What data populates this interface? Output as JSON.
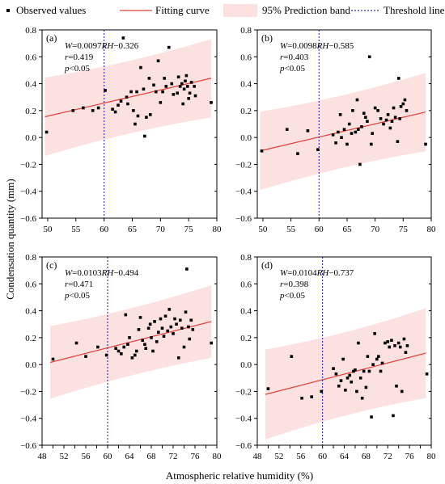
{
  "legend": {
    "observed": "Observed values",
    "fit": "Fitting curve",
    "band": "95% Prediction band",
    "threshold": "Threshold line"
  },
  "ylabel": "Condensation quantity (mm)",
  "xlabel": "Atmospheric relative humidity (%)",
  "colors": {
    "points": "#000000",
    "fit": "#e0403a",
    "band": "#fbe1e0",
    "threshold": "#2a2aa8"
  },
  "chart_data": [
    {
      "type": "scatter",
      "panel": "(a)",
      "annotation": {
        "eq_pre": "W",
        "eq_mid": "=0.0097",
        "eq_var": "RH",
        "eq_post": "−0.326",
        "r_var": "r",
        "r_val": "=0.419",
        "p_var": "p",
        "p_val": "<0.05"
      },
      "xlim": [
        49,
        80
      ],
      "ylim": [
        -0.6,
        0.8
      ],
      "xticks": [
        "50",
        "55",
        "60",
        "65",
        "70",
        "75",
        "80"
      ],
      "yticks": [
        "−0.6",
        "−0.4",
        "−0.2",
        "0.0",
        "0.2",
        "0.4",
        "0.6",
        "0.8"
      ],
      "threshold_x": 60,
      "fit": {
        "slope": 0.0097,
        "intercept": -0.326,
        "x_range": [
          49.5,
          79
        ]
      },
      "band_halfwidth": 0.27,
      "points": [
        [
          49.8,
          0.04
        ],
        [
          54.5,
          0.2
        ],
        [
          56.3,
          0.22
        ],
        [
          58,
          0.2
        ],
        [
          59,
          0.22
        ],
        [
          60.2,
          0.35
        ],
        [
          61.5,
          0.21
        ],
        [
          62,
          0.19
        ],
        [
          62.5,
          0.24
        ],
        [
          63,
          0.27
        ],
        [
          63.4,
          0.74
        ],
        [
          64,
          0.3
        ],
        [
          64.2,
          0.25
        ],
        [
          64.8,
          0.34
        ],
        [
          65.2,
          0.2
        ],
        [
          65.5,
          0.1
        ],
        [
          65.8,
          0.34
        ],
        [
          66,
          0.16
        ],
        [
          66.5,
          0.52
        ],
        [
          67,
          0.36
        ],
        [
          67.2,
          0.01
        ],
        [
          67.5,
          0.15
        ],
        [
          68,
          0.44
        ],
        [
          68.2,
          0.17
        ],
        [
          68.8,
          0.39
        ],
        [
          69.2,
          0.34
        ],
        [
          69.6,
          0.57
        ],
        [
          70,
          0.26
        ],
        [
          70.4,
          0.34
        ],
        [
          70.7,
          0.44
        ],
        [
          71,
          0.38
        ],
        [
          71.5,
          0.67
        ],
        [
          72,
          0.4
        ],
        [
          72.3,
          0.32
        ],
        [
          73,
          0.33
        ],
        [
          73.2,
          0.45
        ],
        [
          73.5,
          0.38
        ],
        [
          73.8,
          0.4
        ],
        [
          74,
          0.25
        ],
        [
          74.2,
          0.36
        ],
        [
          74.4,
          0.42
        ],
        [
          74.6,
          0.46
        ],
        [
          74.8,
          0.38
        ],
        [
          75,
          0.29
        ],
        [
          75.2,
          0.33
        ],
        [
          75.5,
          0.41
        ],
        [
          76,
          0.38
        ],
        [
          76.2,
          0.31
        ],
        [
          79,
          0.26
        ]
      ]
    },
    {
      "type": "scatter",
      "panel": "(b)",
      "annotation": {
        "eq_pre": "W",
        "eq_mid": "=0.0098",
        "eq_var": "RH",
        "eq_post": "−0.585",
        "r_var": "r",
        "r_val": "=0.403",
        "p_var": "p",
        "p_val": "<0.05"
      },
      "xlim": [
        49,
        80
      ],
      "ylim": [
        -0.6,
        0.8
      ],
      "xticks": [
        "50",
        "55",
        "60",
        "65",
        "70",
        "75",
        "80"
      ],
      "yticks": [
        "−0.6",
        "−0.4",
        "−0.2",
        "0.0",
        "0.2",
        "0.4",
        "0.6",
        "0.8"
      ],
      "threshold_x": 60,
      "fit": {
        "slope": 0.0098,
        "intercept": -0.585,
        "x_range": [
          49.5,
          79
        ]
      },
      "band_halfwidth": 0.27,
      "points": [
        [
          49.8,
          -0.1
        ],
        [
          54.3,
          0.06
        ],
        [
          56.2,
          -0.12
        ],
        [
          58,
          0.05
        ],
        [
          59.8,
          -0.09
        ],
        [
          62.5,
          0.02
        ],
        [
          63,
          -0.04
        ],
        [
          63.4,
          0.04
        ],
        [
          63.8,
          0.17
        ],
        [
          64,
          0.0
        ],
        [
          64.5,
          0.06
        ],
        [
          65,
          -0.05
        ],
        [
          65.4,
          0.1
        ],
        [
          65.8,
          0.03
        ],
        [
          66,
          0.2
        ],
        [
          66.5,
          0.04
        ],
        [
          66.8,
          0.28
        ],
        [
          67,
          0.06
        ],
        [
          67.3,
          -0.2
        ],
        [
          67.6,
          0.08
        ],
        [
          68,
          0.18
        ],
        [
          68.3,
          0.15
        ],
        [
          68.6,
          0.12
        ],
        [
          69,
          0.6
        ],
        [
          69.3,
          -0.05
        ],
        [
          69.5,
          0.03
        ],
        [
          70,
          0.22
        ],
        [
          70.5,
          0.2
        ],
        [
          71,
          0.14
        ],
        [
          71.5,
          0.1
        ],
        [
          72,
          0.13
        ],
        [
          72.3,
          0.17
        ],
        [
          72.7,
          0.07
        ],
        [
          73,
          0.12
        ],
        [
          73.3,
          0.22
        ],
        [
          73.6,
          0.15
        ],
        [
          74,
          -0.03
        ],
        [
          74.2,
          0.44
        ],
        [
          74.4,
          0.14
        ],
        [
          74.6,
          0.23
        ],
        [
          75,
          0.25
        ],
        [
          75.3,
          0.28
        ],
        [
          75.6,
          0.2
        ],
        [
          79,
          -0.05
        ]
      ]
    },
    {
      "type": "scatter",
      "panel": "(c)",
      "annotation": {
        "eq_pre": "W",
        "eq_mid": "=0.0103",
        "eq_var": "RH",
        "eq_post": "−0.494",
        "r_var": "r",
        "r_val": "=0.471",
        "p_var": "p",
        "p_val": "<0.05"
      },
      "xlim": [
        48,
        80
      ],
      "ylim": [
        -0.6,
        0.8
      ],
      "xticks": [
        "48",
        "50",
        "52",
        "54",
        "56",
        "58",
        "60",
        "62",
        "64",
        "66",
        "68",
        "70",
        "72",
        "74",
        "76",
        "78",
        "80"
      ],
      "yticks": [
        "−0.6",
        "−0.4",
        "−0.2",
        "0.0",
        "0.2",
        "0.4",
        "0.6",
        "0.8"
      ],
      "threshold_x": 60,
      "fit": {
        "slope": 0.0103,
        "intercept": -0.494,
        "x_range": [
          49.5,
          79
        ]
      },
      "band_halfwidth": 0.25,
      "points": [
        [
          50,
          0.04
        ],
        [
          54.3,
          0.16
        ],
        [
          56,
          0.06
        ],
        [
          58.2,
          0.13
        ],
        [
          59.8,
          0.07
        ],
        [
          61.5,
          0.12
        ],
        [
          62,
          0.1
        ],
        [
          62.5,
          0.08
        ],
        [
          63,
          0.13
        ],
        [
          63.3,
          0.37
        ],
        [
          63.7,
          0.15
        ],
        [
          64,
          0.2
        ],
        [
          64.5,
          0.05
        ],
        [
          65,
          0.07
        ],
        [
          65.3,
          0.1
        ],
        [
          65.7,
          0.26
        ],
        [
          66,
          0.35
        ],
        [
          66.4,
          0.18
        ],
        [
          66.8,
          0.15
        ],
        [
          67,
          0.12
        ],
        [
          67.5,
          0.27
        ],
        [
          67.8,
          0.3
        ],
        [
          68,
          0.2
        ],
        [
          68.3,
          0.1
        ],
        [
          68.6,
          0.32
        ],
        [
          69,
          0.17
        ],
        [
          69.3,
          0.24
        ],
        [
          69.7,
          0.34
        ],
        [
          70,
          0.27
        ],
        [
          70.3,
          0.21
        ],
        [
          70.6,
          0.36
        ],
        [
          71,
          0.25
        ],
        [
          71.3,
          0.41
        ],
        [
          71.6,
          0.28
        ],
        [
          72,
          0.23
        ],
        [
          72.3,
          0.34
        ],
        [
          72.6,
          0.3
        ],
        [
          73,
          0.05
        ],
        [
          73.3,
          0.33
        ],
        [
          73.6,
          0.27
        ],
        [
          74,
          0.13
        ],
        [
          74.3,
          0.39
        ],
        [
          74.5,
          0.71
        ],
        [
          74.8,
          0.28
        ],
        [
          75,
          0.19
        ],
        [
          75.3,
          0.33
        ],
        [
          75.6,
          0.26
        ],
        [
          79,
          0.16
        ]
      ]
    },
    {
      "type": "scatter",
      "panel": "(d)",
      "annotation": {
        "eq_pre": "W",
        "eq_mid": "=0.0104",
        "eq_var": "RH",
        "eq_post": "−0.737",
        "r_var": "r",
        "r_val": "=0.398",
        "p_var": "p",
        "p_val": "<0.05"
      },
      "xlim": [
        48,
        80
      ],
      "ylim": [
        -0.6,
        0.8
      ],
      "xticks": [
        "48",
        "50",
        "52",
        "54",
        "56",
        "58",
        "60",
        "62",
        "64",
        "66",
        "68",
        "70",
        "72",
        "74",
        "76",
        "78",
        "80"
      ],
      "yticks": [
        "−0.6",
        "−0.4",
        "−0.2",
        "0.0",
        "0.2",
        "0.4",
        "0.6",
        "0.8"
      ],
      "threshold_x": 60,
      "fit": {
        "slope": 0.0104,
        "intercept": -0.737,
        "x_range": [
          49.5,
          79
        ]
      },
      "band_halfwidth": 0.31,
      "points": [
        [
          50,
          -0.18
        ],
        [
          54.3,
          0.06
        ],
        [
          56.2,
          -0.25
        ],
        [
          58,
          -0.24
        ],
        [
          59.8,
          -0.2
        ],
        [
          62,
          -0.03
        ],
        [
          62.5,
          -0.07
        ],
        [
          63,
          -0.16
        ],
        [
          63.4,
          -0.12
        ],
        [
          63.8,
          0.04
        ],
        [
          64.2,
          -0.19
        ],
        [
          64.6,
          -0.1
        ],
        [
          65,
          -0.08
        ],
        [
          65.3,
          -0.13
        ],
        [
          65.7,
          -0.05
        ],
        [
          66,
          -0.04
        ],
        [
          66.3,
          -0.2
        ],
        [
          66.6,
          0.16
        ],
        [
          67,
          -0.1
        ],
        [
          67.3,
          -0.25
        ],
        [
          67.6,
          -0.05
        ],
        [
          68,
          -0.17
        ],
        [
          68.3,
          0.06
        ],
        [
          68.6,
          -0.05
        ],
        [
          69,
          -0.39
        ],
        [
          69.3,
          0.0
        ],
        [
          69.6,
          0.23
        ],
        [
          70,
          0.04
        ],
        [
          70.3,
          0.06
        ],
        [
          70.7,
          -0.05
        ],
        [
          71,
          0.01
        ],
        [
          71.5,
          0.16
        ],
        [
          72,
          0.17
        ],
        [
          72.3,
          0.13
        ],
        [
          72.7,
          0.18
        ],
        [
          73,
          -0.38
        ],
        [
          73.3,
          0.14
        ],
        [
          73.6,
          -0.16
        ],
        [
          74,
          0.16
        ],
        [
          74.3,
          0.13
        ],
        [
          74.6,
          -0.2
        ],
        [
          75,
          0.19
        ],
        [
          75.3,
          0.09
        ],
        [
          75.6,
          0.14
        ],
        [
          79.2,
          -0.07
        ]
      ]
    }
  ]
}
